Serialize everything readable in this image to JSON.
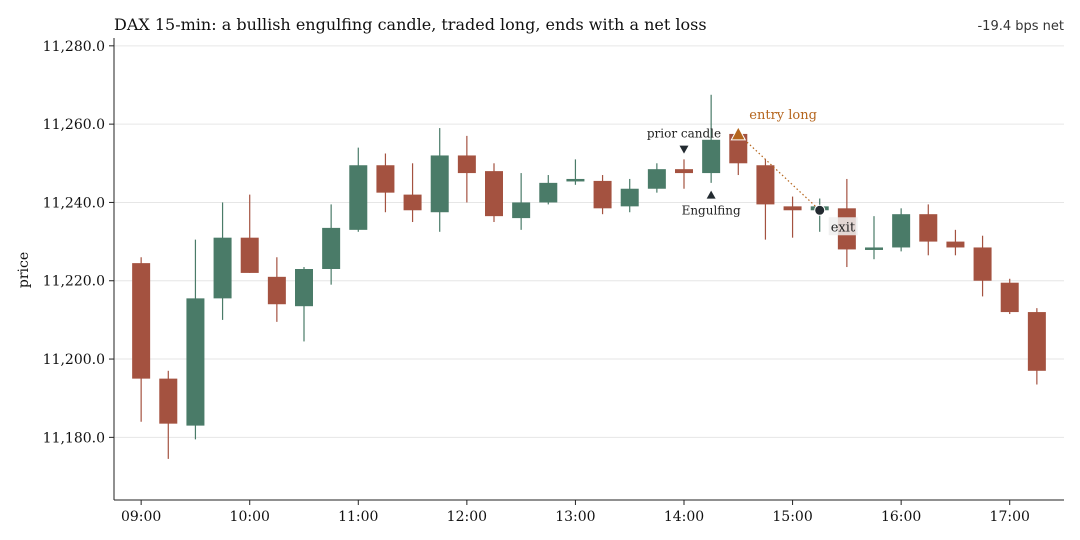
{
  "chart_data": {
    "type": "candlestick",
    "title": "DAX 15-min: a bullish engulfing candle, traded long, ends with a net loss",
    "net_label": "-19.4 bps net",
    "ylabel": "price",
    "ylim": [
      11164,
      11282
    ],
    "xlim": [
      "08:45",
      "17:30"
    ],
    "y_ticks": [
      11180,
      11200,
      11220,
      11240,
      11260,
      11280
    ],
    "y_tick_labels": [
      "11,180.0",
      "11,200.0",
      "11,220.0",
      "11,240.0",
      "11,260.0",
      "11,280.0"
    ],
    "x_ticks": [
      "09:00",
      "10:00",
      "11:00",
      "12:00",
      "13:00",
      "14:00",
      "15:00",
      "16:00",
      "17:00"
    ],
    "grid": "horizontal",
    "colors": {
      "up": "#4a7b68",
      "down": "#a45240",
      "entry": "#b5651d",
      "exit": "#222a30",
      "grid": "#e6e6e6",
      "axis": "#222222"
    },
    "candles": [
      {
        "t": "09:00",
        "o": 11224.5,
        "h": 11226,
        "l": 11184,
        "c": 11195
      },
      {
        "t": "09:15",
        "o": 11195,
        "h": 11197,
        "l": 11174.5,
        "c": 11183.5
      },
      {
        "t": "09:30",
        "o": 11183,
        "h": 11230.5,
        "l": 11179.5,
        "c": 11215.5
      },
      {
        "t": "09:45",
        "o": 11215.5,
        "h": 11240,
        "l": 11210,
        "c": 11231
      },
      {
        "t": "10:00",
        "o": 11231,
        "h": 11242,
        "l": 11222,
        "c": 11222
      },
      {
        "t": "10:15",
        "o": 11221,
        "h": 11226,
        "l": 11209.5,
        "c": 11214
      },
      {
        "t": "10:30",
        "o": 11213.5,
        "h": 11223.5,
        "l": 11204.5,
        "c": 11223
      },
      {
        "t": "10:45",
        "o": 11223,
        "h": 11239.5,
        "l": 11219,
        "c": 11233.5
      },
      {
        "t": "11:00",
        "o": 11233,
        "h": 11254,
        "l": 11232.5,
        "c": 11249.5
      },
      {
        "t": "11:15",
        "o": 11249.5,
        "h": 11252.5,
        "l": 11237.5,
        "c": 11242.5
      },
      {
        "t": "11:30",
        "o": 11242,
        "h": 11250,
        "l": 11235,
        "c": 11238
      },
      {
        "t": "11:45",
        "o": 11237.5,
        "h": 11259,
        "l": 11232.5,
        "c": 11252
      },
      {
        "t": "12:00",
        "o": 11252,
        "h": 11257,
        "l": 11240,
        "c": 11247.5
      },
      {
        "t": "12:15",
        "o": 11248,
        "h": 11250,
        "l": 11235,
        "c": 11236.5
      },
      {
        "t": "12:30",
        "o": 11236,
        "h": 11247.5,
        "l": 11233,
        "c": 11240
      },
      {
        "t": "12:45",
        "o": 11240,
        "h": 11247,
        "l": 11239.5,
        "c": 11245
      },
      {
        "t": "13:00",
        "o": 11245.5,
        "h": 11251,
        "l": 11244.5,
        "c": 11246
      },
      {
        "t": "13:15",
        "o": 11245.5,
        "h": 11247,
        "l": 11237,
        "c": 11238.5
      },
      {
        "t": "13:30",
        "o": 11239,
        "h": 11246,
        "l": 11237.5,
        "c": 11243.5
      },
      {
        "t": "13:45",
        "o": 11243.5,
        "h": 11250,
        "l": 11242.5,
        "c": 11248.5
      },
      {
        "t": "14:00",
        "o": 11248.5,
        "h": 11251,
        "l": 11243.5,
        "c": 11247.5
      },
      {
        "t": "14:15",
        "o": 11247.5,
        "h": 11267.5,
        "l": 11245,
        "c": 11256
      },
      {
        "t": "14:30",
        "o": 11257.5,
        "h": 11258.5,
        "l": 11247,
        "c": 11250
      },
      {
        "t": "14:45",
        "o": 11249.5,
        "h": 11251,
        "l": 11230.5,
        "c": 11239.5
      },
      {
        "t": "15:00",
        "o": 11239,
        "h": 11241.5,
        "l": 11231,
        "c": 11238
      },
      {
        "t": "15:15",
        "o": 11238,
        "h": 11241,
        "l": 11232.5,
        "c": 11239
      },
      {
        "t": "15:30",
        "o": 11238.5,
        "h": 11246,
        "l": 11223.5,
        "c": 11228
      },
      {
        "t": "15:45",
        "o": 11228,
        "h": 11236.5,
        "l": 11225.5,
        "c": 11228.5
      },
      {
        "t": "16:00",
        "o": 11228.5,
        "h": 11238.5,
        "l": 11227.5,
        "c": 11237
      },
      {
        "t": "16:15",
        "o": 11237,
        "h": 11239.5,
        "l": 11226.5,
        "c": 11230
      },
      {
        "t": "16:30",
        "o": 11230,
        "h": 11233,
        "l": 11226.5,
        "c": 11228.5
      },
      {
        "t": "16:45",
        "o": 11228.5,
        "h": 11231.5,
        "l": 11216,
        "c": 11220
      },
      {
        "t": "17:00",
        "o": 11219.5,
        "h": 11220.5,
        "l": 11211.5,
        "c": 11212
      },
      {
        "t": "17:15",
        "o": 11212,
        "h": 11213,
        "l": 11193.5,
        "c": 11197
      }
    ],
    "annotations": {
      "prior": {
        "label": "prior candle",
        "t": "14:00",
        "marker_price": 11253.5
      },
      "engulfing": {
        "label": "Engulfing",
        "t": "14:15",
        "marker_price": 11242
      },
      "entry": {
        "label": "entry long",
        "t": "14:30",
        "price": 11257.5
      },
      "exit": {
        "label": "exit",
        "t": "15:15",
        "price": 11238
      }
    }
  }
}
